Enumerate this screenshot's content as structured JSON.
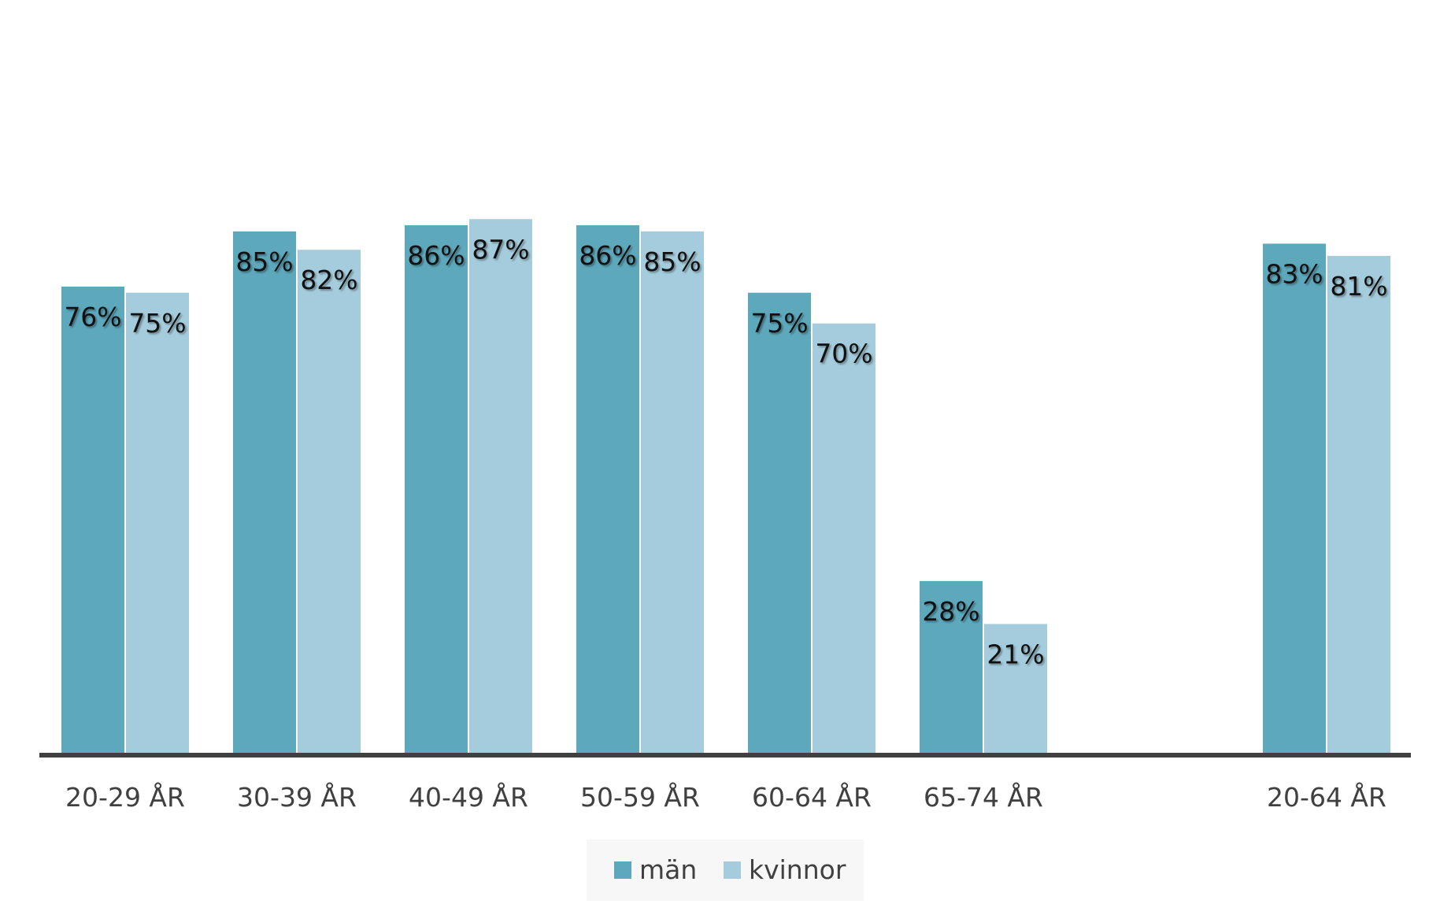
{
  "chart_data": {
    "type": "bar",
    "categories": [
      "20-29 ÅR",
      "30-39 ÅR",
      "40-49 ÅR",
      "50-59 ÅR",
      "60-64 ÅR",
      "65-74 ÅR",
      "",
      "20-64 ÅR"
    ],
    "series": [
      {
        "name": "män",
        "values": [
          76,
          85,
          86,
          86,
          75,
          28,
          null,
          83
        ],
        "labels": [
          "76%",
          "85%",
          "86%",
          "86%",
          "75%",
          "28%",
          "",
          "83%"
        ]
      },
      {
        "name": "kvinnor",
        "values": [
          75,
          82,
          87,
          85,
          70,
          21,
          null,
          81
        ],
        "labels": [
          "75%",
          "82%",
          "87%",
          "85%",
          "70%",
          "21%",
          "",
          "81%"
        ]
      }
    ],
    "ylim": [
      0,
      100
    ],
    "grid": false,
    "legend_position": "bottom"
  },
  "colors": {
    "män": "#5ea8bc",
    "kvinnor": "#a5ccdc",
    "axis": "#404040",
    "legend_bg": "#f7f7f7"
  }
}
